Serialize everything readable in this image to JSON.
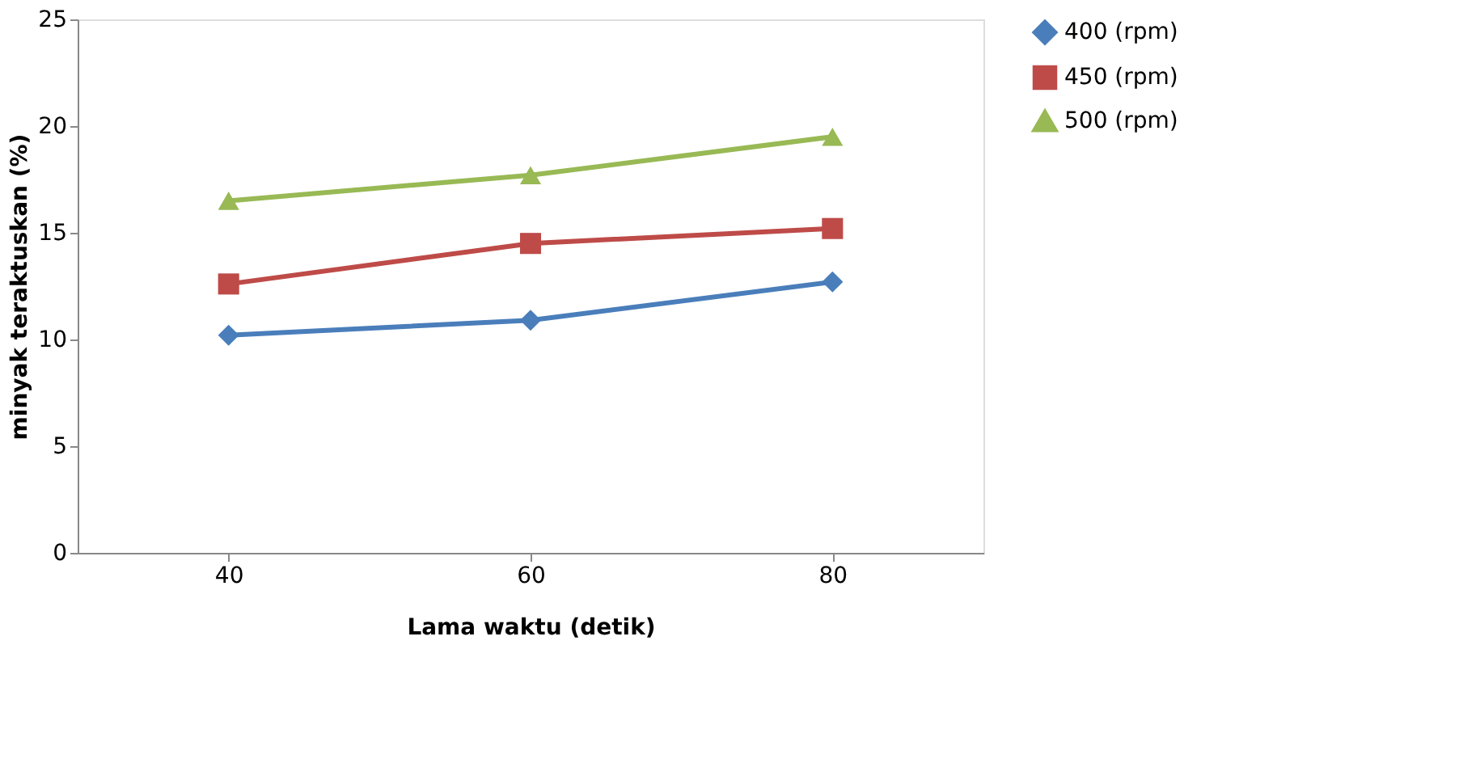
{
  "chart_data": {
    "type": "line",
    "xlabel": "Lama waktu (detik)",
    "ylabel": "minyak teraktuskan (%)",
    "categories": [
      "40",
      "60",
      "80"
    ],
    "series": [
      {
        "name": "400 (rpm)",
        "color": "#4a7ebb",
        "marker": "diamond",
        "values": [
          10.2,
          10.9,
          12.7
        ]
      },
      {
        "name": "450 (rpm)",
        "color": "#be4b48",
        "marker": "square",
        "values": [
          12.6,
          14.5,
          15.2
        ]
      },
      {
        "name": "500 (rpm)",
        "color": "#98b954",
        "marker": "triangle",
        "values": [
          16.5,
          17.7,
          19.5
        ]
      }
    ],
    "ylim": [
      0,
      25
    ],
    "yticks": [
      0,
      5,
      10,
      15,
      20,
      25
    ],
    "grid": false,
    "legend": "right"
  }
}
